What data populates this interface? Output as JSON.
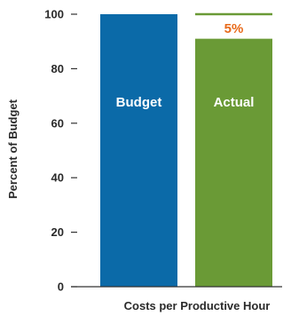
{
  "chart_data": {
    "type": "bar",
    "categories": [
      "Budget",
      "Actual"
    ],
    "values": [
      100,
      91
    ],
    "colors": [
      "#0b6aa8",
      "#6a9a36"
    ],
    "xlabel": "Costs per Productive Hour",
    "ylabel": "Percent of Budget",
    "ylim": [
      0,
      100
    ],
    "yticks": [
      0,
      20,
      40,
      60,
      80,
      100
    ],
    "grid": false,
    "annotation": {
      "text": "5%",
      "color": "#e86a1a",
      "reference_value": 100,
      "reference_line_color": "#6a9a36"
    }
  }
}
